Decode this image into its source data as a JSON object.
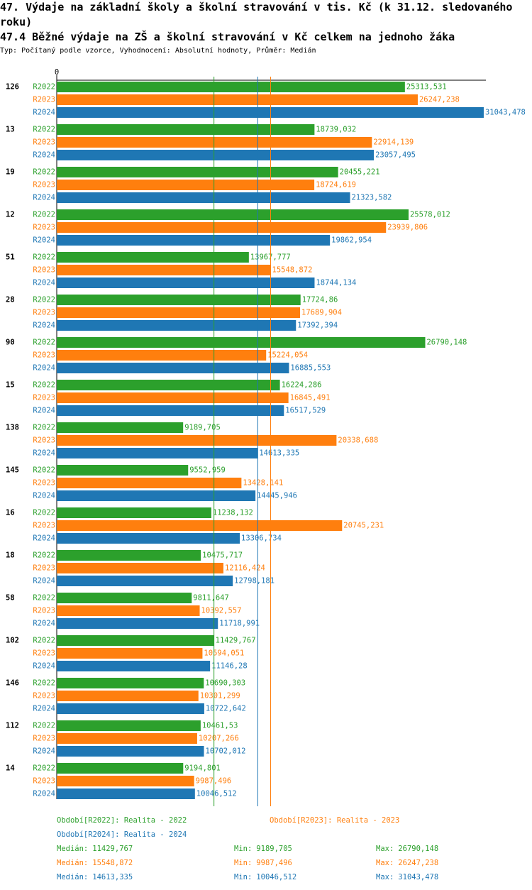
{
  "chart_data": {
    "type": "bar",
    "orientation": "horizontal",
    "title": "47. Výdaje na základní školy a školní stravování v tis. Kč (k 31.12. sledovaného roku)",
    "subtitle": "47.4 Běžné výdaje na ZŠ a školní stravování v Kč celkem na jednoho žáka",
    "note": "Typ: Počítaný podle vzorce, Vyhodnocení: Absolutní hodnoty, Průměr: Medián",
    "categories": [
      "126",
      "13",
      "19",
      "12",
      "51",
      "28",
      "90",
      "15",
      "138",
      "145",
      "16",
      "18",
      "58",
      "102",
      "146",
      "112",
      "14"
    ],
    "xlim": [
      0,
      31200
    ],
    "xticks": [
      0
    ],
    "stat_names": [
      "Medián:",
      "Min:",
      "Max:"
    ],
    "series": [
      {
        "name": "R2022",
        "legend": "Období[R2022]: Realita - 2022",
        "color": "#2ca02c",
        "values": [
          25313.531,
          18739.032,
          20455.221,
          25578.012,
          13967.777,
          17724.86,
          26790.148,
          16224.286,
          9189.705,
          9552.959,
          11238.132,
          10475.717,
          9811.647,
          11429.767,
          10690.303,
          10461.53,
          9194.801
        ],
        "value_labels": [
          "25313,531",
          "18739,032",
          "20455,221",
          "25578,012",
          "13967,777",
          "17724,86",
          "26790,148",
          "16224,286",
          "9189,705",
          "9552,959",
          "11238,132",
          "10475,717",
          "9811,647",
          "11429,767",
          "10690,303",
          "10461,53",
          "9194,801"
        ],
        "median": 11429.767,
        "median_label": "11429,767",
        "min": 9189.705,
        "min_label": "9189,705",
        "max": 26790.148,
        "max_label": "26790,148"
      },
      {
        "name": "R2023",
        "legend": "Období[R2023]: Realita - 2023",
        "color": "#ff7f0e",
        "values": [
          26247.238,
          22914.139,
          18724.619,
          23939.806,
          15548.872,
          17689.904,
          15224.054,
          16845.491,
          20338.688,
          13428.141,
          20745.231,
          12116.424,
          10392.557,
          10594.051,
          10301.299,
          10207.266,
          9987.496
        ],
        "value_labels": [
          "26247,238",
          "22914,139",
          "18724,619",
          "23939,806",
          "15548,872",
          "17689,904",
          "15224,054",
          "16845,491",
          "20338,688",
          "13428,141",
          "20745,231",
          "12116,424",
          "10392,557",
          "10594,051",
          "10301,299",
          "10207,266",
          "9987,496"
        ],
        "median": 15548.872,
        "median_label": "15548,872",
        "min": 9987.496,
        "min_label": "9987,496",
        "max": 26247.238,
        "max_label": "26247,238"
      },
      {
        "name": "R2024",
        "legend": "Období[R2024]: Realita - 2024",
        "color": "#1f77b4",
        "values": [
          31043.478,
          23057.495,
          21323.582,
          19862.954,
          18744.134,
          17392.394,
          16885.553,
          16517.529,
          14613.335,
          14445.946,
          13306.734,
          12798.181,
          11718.991,
          11146.28,
          10722.642,
          10702.012,
          10046.512
        ],
        "value_labels": [
          "31043,478",
          "23057,495",
          "21323,582",
          "19862,954",
          "18744,134",
          "17392,394",
          "16885,553",
          "16517,529",
          "14613,335",
          "14445,946",
          "13306,734",
          "12798,181",
          "11718,991",
          "11146,28",
          "10722,642",
          "10702,012",
          "10046,512"
        ],
        "median": 14613.335,
        "median_label": "14613,335",
        "min": 10046.512,
        "min_label": "10046,512",
        "max": 31043.478,
        "max_label": "31043,478"
      }
    ]
  }
}
